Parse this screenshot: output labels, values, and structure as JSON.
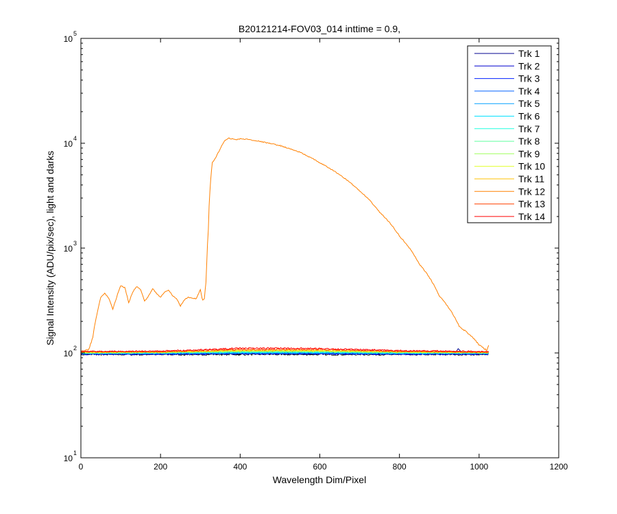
{
  "chart_data": {
    "type": "line",
    "title": "B20121214-FOV03_014 inttime = 0.9,",
    "xlabel": "Wavelength Dim/Pixel",
    "ylabel": "Signal Intensity (ADU/pix/sec), light and darks",
    "xlim": [
      0,
      1200
    ],
    "ylim": [
      10,
      100000
    ],
    "yscale": "log",
    "grid": false,
    "legend_position": "top-right",
    "x_ticks": [
      0,
      200,
      400,
      600,
      800,
      1000,
      1200
    ],
    "y_ticks": [
      {
        "value": 10,
        "base": "10",
        "exp": "1"
      },
      {
        "value": 100,
        "base": "10",
        "exp": "2"
      },
      {
        "value": 1000,
        "base": "10",
        "exp": "3"
      },
      {
        "value": 10000,
        "base": "10",
        "exp": "4"
      },
      {
        "value": 100000,
        "base": "10",
        "exp": "5"
      }
    ],
    "series": [
      {
        "name": "Trk 1",
        "color": "#00008f",
        "x": [
          0,
          200,
          400,
          600,
          800,
          940,
          948,
          956,
          1024
        ],
        "y": [
          100,
          99,
          99,
          99,
          99,
          99,
          110,
          99,
          100
        ]
      },
      {
        "name": "Trk 2",
        "color": "#0000cf",
        "x": [
          0,
          200,
          400,
          600,
          800,
          1024
        ],
        "y": [
          97,
          97,
          98,
          98,
          97,
          97
        ]
      },
      {
        "name": "Trk 3",
        "color": "#0020ff",
        "x": [
          0,
          200,
          400,
          600,
          800,
          1024
        ],
        "y": [
          98,
          98,
          99,
          99,
          98,
          98
        ]
      },
      {
        "name": "Trk 4",
        "color": "#0060ff",
        "x": [
          0,
          200,
          400,
          600,
          800,
          1024
        ],
        "y": [
          99,
          99,
          100,
          100,
          99,
          99
        ]
      },
      {
        "name": "Trk 5",
        "color": "#00a0ff",
        "x": [
          0,
          200,
          400,
          600,
          800,
          1024
        ],
        "y": [
          99,
          99,
          100,
          100,
          99,
          99
        ]
      },
      {
        "name": "Trk 6",
        "color": "#00e0ff",
        "x": [
          0,
          200,
          400,
          600,
          800,
          1024
        ],
        "y": [
          100,
          100,
          101,
          101,
          100,
          100
        ]
      },
      {
        "name": "Trk 7",
        "color": "#20ffdf",
        "x": [
          0,
          200,
          400,
          600,
          800,
          1024
        ],
        "y": [
          100,
          100,
          102,
          102,
          100,
          100
        ]
      },
      {
        "name": "Trk 8",
        "color": "#60ff9f",
        "x": [
          0,
          200,
          400,
          600,
          800,
          1024
        ],
        "y": [
          100,
          101,
          103,
          103,
          101,
          100
        ]
      },
      {
        "name": "Trk 9",
        "color": "#a0ff60",
        "x": [
          0,
          200,
          400,
          600,
          800,
          1024
        ],
        "y": [
          101,
          101,
          104,
          104,
          102,
          101
        ]
      },
      {
        "name": "Trk 10",
        "color": "#e0ff20",
        "x": [
          0,
          200,
          400,
          600,
          800,
          1024
        ],
        "y": [
          101,
          102,
          105,
          105,
          102,
          101
        ]
      },
      {
        "name": "Trk 11",
        "color": "#ffc000",
        "x": [
          0,
          200,
          400,
          600,
          800,
          1024
        ],
        "y": [
          102,
          102,
          106,
          106,
          103,
          101
        ]
      },
      {
        "name": "Trk 12",
        "color": "#ff8000",
        "x": [
          0,
          10,
          20,
          30,
          40,
          50,
          60,
          70,
          80,
          90,
          100,
          110,
          120,
          130,
          140,
          150,
          160,
          170,
          180,
          190,
          200,
          210,
          220,
          230,
          240,
          250,
          260,
          270,
          280,
          290,
          300,
          305,
          310,
          315,
          320,
          325,
          330,
          340,
          350,
          360,
          370,
          380,
          390,
          400,
          420,
          450,
          500,
          550,
          600,
          650,
          700,
          750,
          800,
          850,
          900,
          950,
          1000,
          1020,
          1024
        ],
        "y": [
          105,
          105,
          108,
          140,
          230,
          340,
          370,
          330,
          260,
          340,
          440,
          420,
          300,
          380,
          430,
          400,
          310,
          350,
          410,
          370,
          340,
          380,
          400,
          350,
          330,
          280,
          320,
          340,
          330,
          330,
          400,
          320,
          330,
          500,
          1500,
          4000,
          6500,
          7500,
          8800,
          10500,
          11200,
          11000,
          10800,
          11000,
          10900,
          10400,
          9500,
          8200,
          6500,
          5000,
          3500,
          2200,
          1300,
          700,
          350,
          180,
          120,
          105,
          120
        ]
      },
      {
        "name": "Trk 13",
        "color": "#ff4000",
        "x": [
          0,
          200,
          400,
          600,
          800,
          1024
        ],
        "y": [
          103,
          103,
          108,
          108,
          104,
          102
        ]
      },
      {
        "name": "Trk 14",
        "color": "#ff0000",
        "x": [
          0,
          200,
          300,
          400,
          500,
          600,
          800,
          1024
        ],
        "y": [
          103,
          104,
          107,
          111,
          111,
          110,
          105,
          103
        ]
      }
    ]
  }
}
